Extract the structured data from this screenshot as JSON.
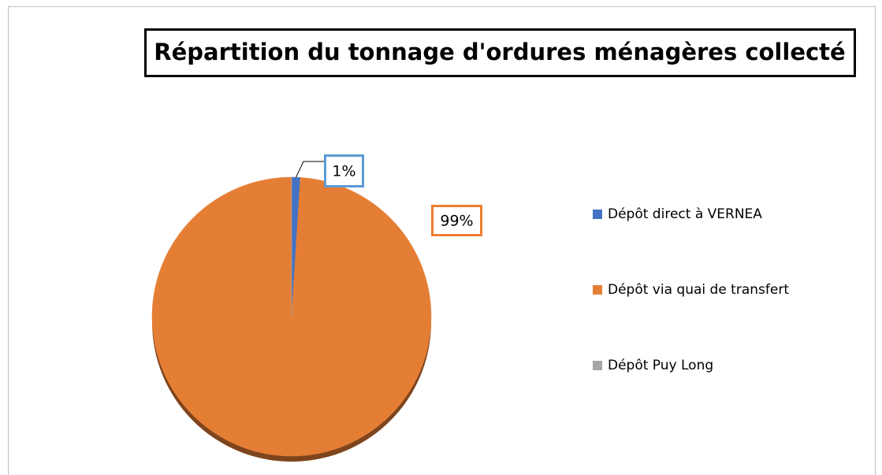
{
  "chart_data": {
    "type": "pie",
    "title": "Répartition du tonnage d'ordures ménagères collecté",
    "categories": [
      "Dépôt direct à VERNEA",
      "Dépôt via quai de transfert",
      "Dépôt Puy Long"
    ],
    "values": [
      1,
      99,
      0
    ],
    "value_labels": [
      "1%",
      "99%",
      null
    ],
    "colors": [
      "#4472c4",
      "#e57e35",
      "#a5a5a5"
    ],
    "legend": "right"
  }
}
